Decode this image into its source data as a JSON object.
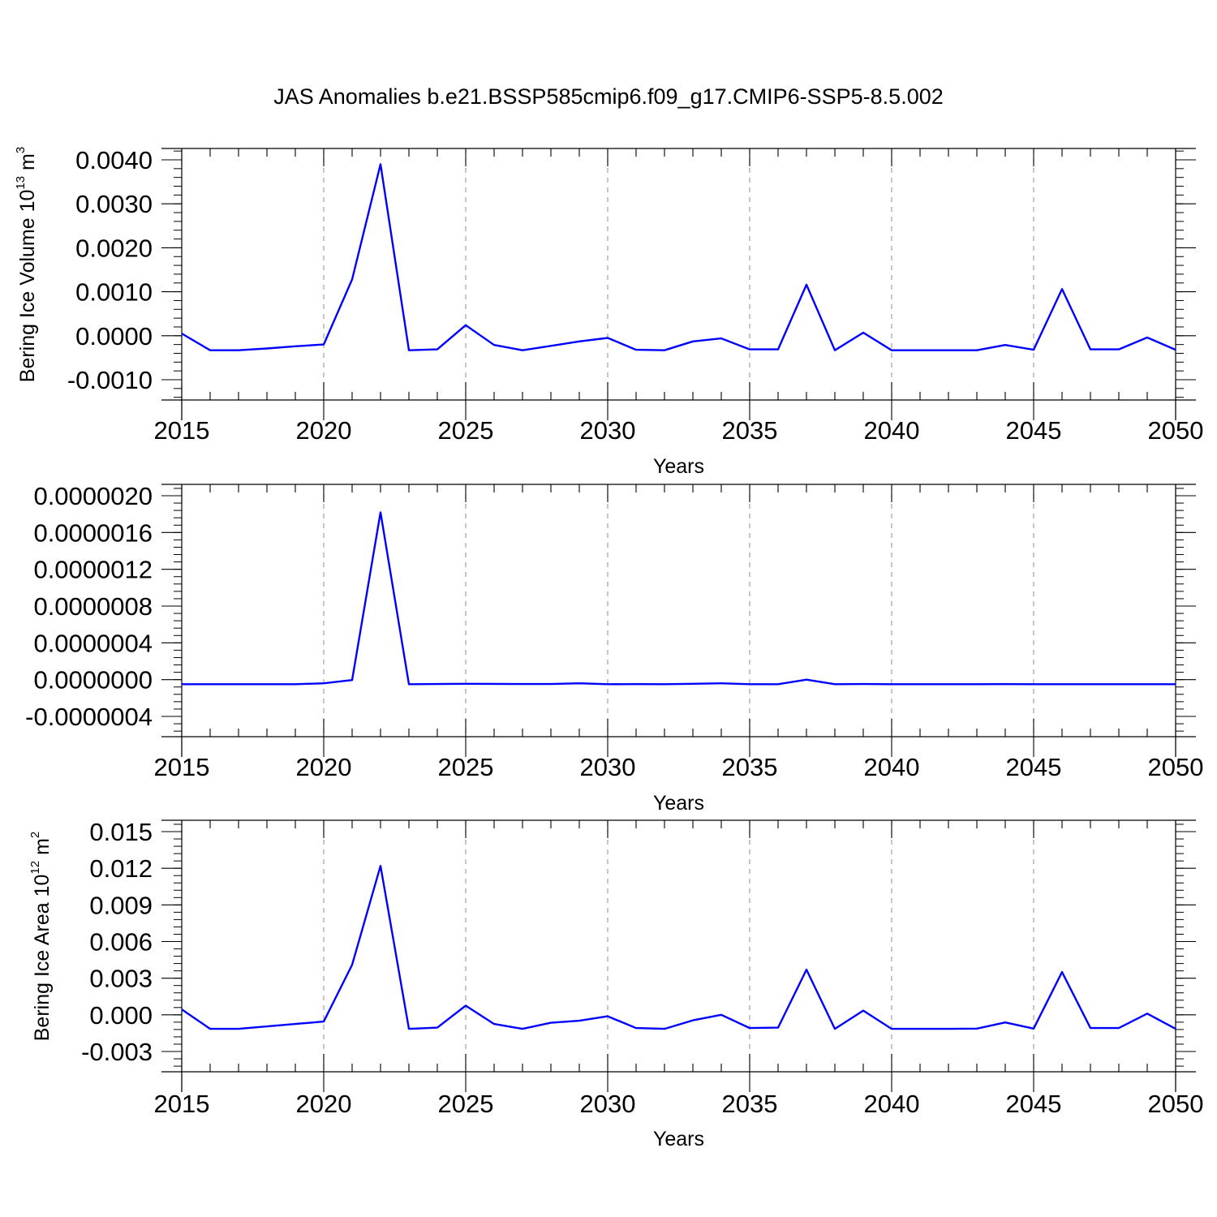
{
  "page": {
    "title": "JAS Anomalies b.e21.BSSP585cmip6.f09_g17.CMIP6-SSP5-8.5.002"
  },
  "colors": {
    "line": "#0000ff",
    "axis": "#000000",
    "grid": "#a0a0a0"
  },
  "chart_data": [
    {
      "type": "line",
      "title": "",
      "xlabel": "Years",
      "ylabel": "Bering Ice Volume 10",
      "ylabel_exp": "13",
      "ylabel_unit": " m",
      "ylabel_unit_exp": "3",
      "xlim": [
        2015,
        2050
      ],
      "ylim": [
        -0.001,
        0.0043
      ],
      "xticks": [
        2015,
        2020,
        2025,
        2030,
        2035,
        2040,
        2045,
        2050
      ],
      "xtick_labels": [
        "2015",
        "2020",
        "2025",
        "2030",
        "2035",
        "2040",
        "2045",
        "2050"
      ],
      "yticks": [
        -0.001,
        0.0,
        0.001,
        0.002,
        0.003,
        0.004
      ],
      "ytick_labels": [
        "-0.0010",
        "0.0000",
        "0.0010",
        "0.0020",
        "0.0030",
        "0.0040"
      ],
      "grid": "vertical dashed at major x ticks",
      "series": [
        {
          "x": [
            2015,
            2016,
            2017,
            2018,
            2019,
            2020,
            2021,
            2022,
            2023,
            2024,
            2025,
            2026,
            2027,
            2028,
            2029,
            2030,
            2031,
            2032,
            2033,
            2034,
            2035,
            2036,
            2037,
            2038,
            2039,
            2040,
            2041,
            2042,
            2043,
            2044,
            2045,
            2046,
            2047,
            2048,
            2049,
            2050
          ],
          "y": [
            5e-05,
            -0.00033,
            -0.00033,
            -0.00029,
            -0.00024,
            -0.0002,
            0.00128,
            0.0039,
            -0.00033,
            -0.00031,
            0.00024,
            -0.00021,
            -0.00033,
            -0.00023,
            -0.00013,
            -5e-05,
            -0.00032,
            -0.00033,
            -0.00013,
            -6e-05,
            -0.00031,
            -0.00031,
            0.00116,
            -0.00033,
            7e-05,
            -0.00033,
            -0.00033,
            -0.00033,
            -0.00033,
            -0.00021,
            -0.00032,
            0.00106,
            -0.00031,
            -0.00031,
            -4e-05,
            -0.00032
          ]
        }
      ]
    },
    {
      "type": "line",
      "title": "",
      "xlabel": "Years",
      "ylabel": "",
      "ylabel_exp": "",
      "ylabel_unit": "",
      "ylabel_unit_exp": "",
      "xlim": [
        2015,
        2050
      ],
      "ylim": [
        -4e-07,
        2e-06
      ],
      "xticks": [
        2015,
        2020,
        2025,
        2030,
        2035,
        2040,
        2045,
        2050
      ],
      "xtick_labels": [
        "2015",
        "2020",
        "2025",
        "2030",
        "2035",
        "2040",
        "2045",
        "2050"
      ],
      "yticks": [
        -4e-07,
        0.0,
        4e-07,
        8e-07,
        1.2e-06,
        1.6e-06,
        2e-06
      ],
      "ytick_labels": [
        "-0.0000004",
        "0.0000000",
        "0.0000004",
        "0.0000008",
        "0.0000012",
        "0.0000016",
        "0.0000020"
      ],
      "grid": "vertical dashed at major x ticks",
      "series": [
        {
          "x": [
            2015,
            2016,
            2017,
            2018,
            2019,
            2020,
            2021,
            2022,
            2023,
            2024,
            2025,
            2026,
            2027,
            2028,
            2029,
            2030,
            2031,
            2032,
            2033,
            2034,
            2035,
            2036,
            2037,
            2038,
            2039,
            2040,
            2041,
            2042,
            2043,
            2044,
            2045,
            2046,
            2047,
            2048,
            2049,
            2050
          ],
          "y": [
            -5e-08,
            -5e-08,
            -5e-08,
            -5e-08,
            -5e-08,
            -4e-08,
            -5e-09,
            1.82e-06,
            -5e-08,
            -4.8e-08,
            -4.5e-08,
            -4.6e-08,
            -4.8e-08,
            -4.8e-08,
            -4e-08,
            -5e-08,
            -4.9e-08,
            -5e-08,
            -4.5e-08,
            -4e-08,
            -5e-08,
            -5e-08,
            0.0,
            -5e-08,
            -4.8e-08,
            -5e-08,
            -5e-08,
            -5e-08,
            -5e-08,
            -4.9e-08,
            -5e-08,
            -5e-08,
            -5e-08,
            -5e-08,
            -5e-08,
            -5e-08
          ]
        }
      ]
    },
    {
      "type": "line",
      "title": "",
      "xlabel": "Years",
      "ylabel": "Bering Ice Area 10",
      "ylabel_exp": "12",
      "ylabel_unit": " m",
      "ylabel_unit_exp": "2",
      "xlim": [
        2015,
        2050
      ],
      "ylim": [
        -0.003,
        0.0165
      ],
      "xticks": [
        2015,
        2020,
        2025,
        2030,
        2035,
        2040,
        2045,
        2050
      ],
      "xtick_labels": [
        "2015",
        "2020",
        "2025",
        "2030",
        "2035",
        "2040",
        "2045",
        "2050"
      ],
      "yticks": [
        -0.003,
        0.0,
        0.003,
        0.006,
        0.009,
        0.012,
        0.015
      ],
      "ytick_labels": [
        "-0.003",
        "0.000",
        "0.003",
        "0.006",
        "0.009",
        "0.012",
        "0.015"
      ],
      "grid": "vertical dashed at major x ticks",
      "series": [
        {
          "x": [
            2015,
            2016,
            2017,
            2018,
            2019,
            2020,
            2021,
            2022,
            2023,
            2024,
            2025,
            2026,
            2027,
            2028,
            2029,
            2030,
            2031,
            2032,
            2033,
            2034,
            2035,
            2036,
            2037,
            2038,
            2039,
            2040,
            2041,
            2042,
            2043,
            2044,
            2045,
            2046,
            2047,
            2048,
            2049,
            2050
          ],
          "y": [
            0.00045,
            -0.00115,
            -0.00115,
            -0.00095,
            -0.00075,
            -0.00055,
            0.0041,
            0.0122,
            -0.00115,
            -0.00105,
            0.00075,
            -0.00075,
            -0.00115,
            -0.00065,
            -0.00048,
            -0.00012,
            -0.00108,
            -0.00115,
            -0.00045,
            0.0,
            -0.00108,
            -0.00105,
            0.0037,
            -0.00115,
            0.00035,
            -0.00115,
            -0.00115,
            -0.00115,
            -0.00113,
            -0.00062,
            -0.00113,
            0.0035,
            -0.00108,
            -0.00108,
            0.0001,
            -0.00115
          ]
        }
      ]
    }
  ]
}
